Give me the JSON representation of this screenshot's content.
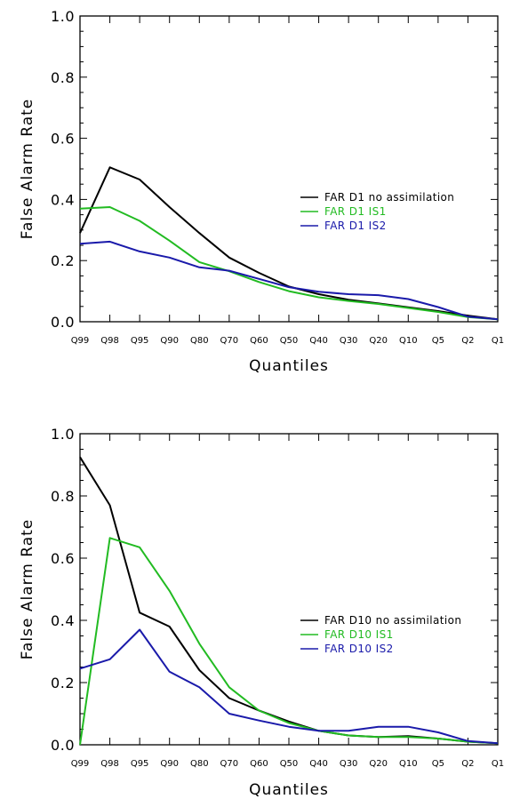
{
  "chart_data": [
    {
      "type": "line",
      "title": "",
      "xlabel": "Quantiles",
      "ylabel": "False Alarm Rate",
      "categories": [
        "Q99",
        "Q98",
        "Q95",
        "Q90",
        "Q80",
        "Q70",
        "Q60",
        "Q50",
        "Q40",
        "Q30",
        "Q20",
        "Q10",
        "Q5",
        "Q2",
        "Q1"
      ],
      "ylim": [
        0,
        1.0
      ],
      "yticks": [
        "0.0",
        "0.2",
        "0.4",
        "0.6",
        "0.8",
        "1.0"
      ],
      "grid": false,
      "legend_position": "center-right",
      "series": [
        {
          "name": "FAR D1 no assimilation",
          "color": "#000000",
          "values": [
            0.29,
            0.505,
            0.465,
            0.375,
            0.29,
            0.21,
            0.16,
            0.115,
            0.09,
            0.072,
            0.06,
            0.047,
            0.035,
            0.02,
            0.008
          ]
        },
        {
          "name": "FAR D1 IS1",
          "color": "#22bb22",
          "values": [
            0.37,
            0.375,
            0.33,
            0.265,
            0.195,
            0.165,
            0.13,
            0.1,
            0.08,
            0.068,
            0.058,
            0.045,
            0.032,
            0.015,
            0.008
          ]
        },
        {
          "name": "FAR D1 IS2",
          "color": "#1a1aaa",
          "values": [
            0.255,
            0.262,
            0.23,
            0.21,
            0.178,
            0.167,
            0.14,
            0.113,
            0.098,
            0.09,
            0.087,
            0.074,
            0.048,
            0.017,
            0.008
          ]
        }
      ]
    },
    {
      "type": "line",
      "title": "",
      "xlabel": "Quantiles",
      "ylabel": "False Alarm Rate",
      "categories": [
        "Q99",
        "Q98",
        "Q95",
        "Q90",
        "Q80",
        "Q70",
        "Q60",
        "Q50",
        "Q40",
        "Q30",
        "Q20",
        "Q10",
        "Q5",
        "Q2",
        "Q1"
      ],
      "ylim": [
        0,
        1.0
      ],
      "yticks": [
        "0.0",
        "0.2",
        "0.4",
        "0.6",
        "0.8",
        "1.0"
      ],
      "grid": false,
      "legend_position": "center-right",
      "series": [
        {
          "name": "FAR D10 no assimilation",
          "color": "#000000",
          "values": [
            0.925,
            0.77,
            0.425,
            0.38,
            0.24,
            0.15,
            0.11,
            0.075,
            0.045,
            0.03,
            0.025,
            0.028,
            0.02,
            0.01,
            0.005
          ]
        },
        {
          "name": "FAR D10 IS1",
          "color": "#22bb22",
          "values": [
            0.0,
            0.665,
            0.635,
            0.495,
            0.325,
            0.185,
            0.11,
            0.07,
            0.045,
            0.03,
            0.025,
            0.025,
            0.02,
            0.01,
            0.005
          ]
        },
        {
          "name": "FAR D10 IS2",
          "color": "#1a1aaa",
          "values": [
            0.245,
            0.275,
            0.37,
            0.235,
            0.185,
            0.1,
            0.078,
            0.058,
            0.045,
            0.045,
            0.058,
            0.058,
            0.04,
            0.012,
            0.005
          ]
        }
      ]
    }
  ]
}
